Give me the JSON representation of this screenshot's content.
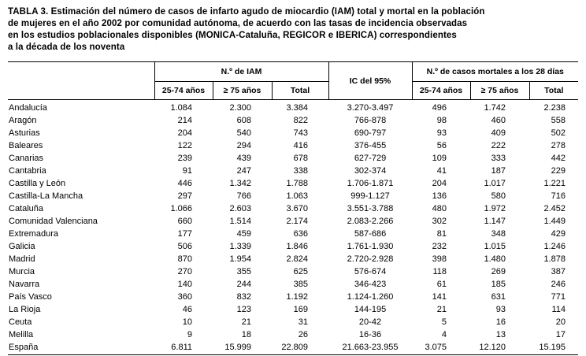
{
  "caption_lines": [
    "TABLA 3. Estimación del número de casos de infarto agudo de miocardio (IAM) total y mortal en la población",
    "de mujeres en el año 2002 por comunidad autónoma, de acuerdo con las tasas de incidencia observadas",
    "en los estudios poblacionales disponibles (MONICA-Cataluña, REGICOR e IBERICA) correspondientes",
    "a la década de los noventa"
  ],
  "table": {
    "group_headers": [
      "N.º de IAM",
      "IC del 95%",
      "N.º de casos mortales a los 28 días"
    ],
    "sub_headers": [
      "25-74 años",
      "≥ 75 años",
      "Total"
    ],
    "rows": [
      [
        "Andalucía",
        "1.084",
        "2.300",
        "3.384",
        "3.270-3.497",
        "496",
        "1.742",
        "2.238"
      ],
      [
        "Aragón",
        "214",
        "608",
        "822",
        "766-878",
        "98",
        "460",
        "558"
      ],
      [
        "Asturias",
        "204",
        "540",
        "743",
        "690-797",
        "93",
        "409",
        "502"
      ],
      [
        "Baleares",
        "122",
        "294",
        "416",
        "376-455",
        "56",
        "222",
        "278"
      ],
      [
        "Canarias",
        "239",
        "439",
        "678",
        "627-729",
        "109",
        "333",
        "442"
      ],
      [
        "Cantabria",
        "91",
        "247",
        "338",
        "302-374",
        "41",
        "187",
        "229"
      ],
      [
        "Castilla y León",
        "446",
        "1.342",
        "1.788",
        "1.706-1.871",
        "204",
        "1.017",
        "1.221"
      ],
      [
        "Castilla-La Mancha",
        "297",
        "766",
        "1.063",
        "999-1.127",
        "136",
        "580",
        "716"
      ],
      [
        "Cataluña",
        "1.066",
        "2.603",
        "3.670",
        "3.551-3.788",
        "480",
        "1.972",
        "2.452"
      ],
      [
        "Comunidad Valenciana",
        "660",
        "1.514",
        "2.174",
        "2.083-2.266",
        "302",
        "1.147",
        "1.449"
      ],
      [
        "Extremadura",
        "177",
        "459",
        "636",
        "587-686",
        "81",
        "348",
        "429"
      ],
      [
        "Galicia",
        "506",
        "1.339",
        "1.846",
        "1.761-1.930",
        "232",
        "1.015",
        "1.246"
      ],
      [
        "Madrid",
        "870",
        "1.954",
        "2.824",
        "2.720-2.928",
        "398",
        "1.480",
        "1.878"
      ],
      [
        "Murcia",
        "270",
        "355",
        "625",
        "576-674",
        "118",
        "269",
        "387"
      ],
      [
        "Navarra",
        "140",
        "244",
        "385",
        "346-423",
        "61",
        "185",
        "246"
      ],
      [
        "País Vasco",
        "360",
        "832",
        "1.192",
        "1.124-1.260",
        "141",
        "631",
        "771"
      ],
      [
        "La Rioja",
        "46",
        "123",
        "169",
        "144-195",
        "21",
        "93",
        "114"
      ],
      [
        "Ceuta",
        "10",
        "21",
        "31",
        "20-42",
        "5",
        "16",
        "20"
      ],
      [
        "Melilla",
        "9",
        "18",
        "26",
        "16-36",
        "4",
        "13",
        "17"
      ],
      [
        "España",
        "6.811",
        "15.999",
        "22.809",
        "21.663-23.955",
        "3.075",
        "12.120",
        "15.195"
      ]
    ]
  }
}
